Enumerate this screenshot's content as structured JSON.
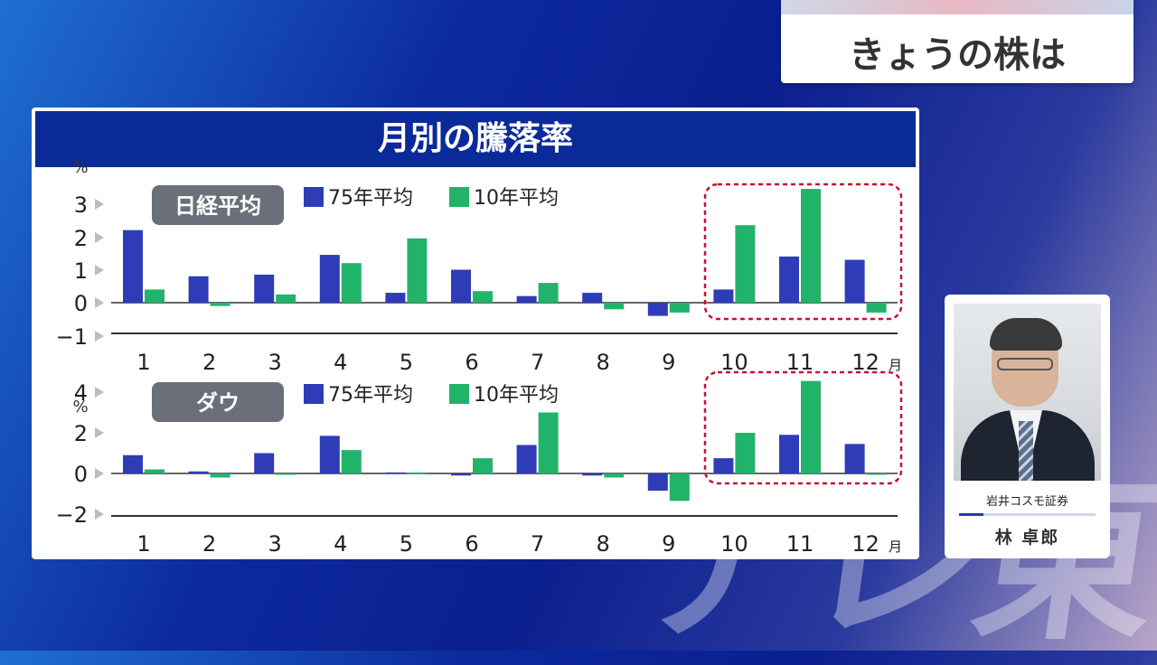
{
  "title_box": {
    "title": "きょうの株は"
  },
  "panel": {
    "title": "月別の騰落率"
  },
  "legend": {
    "series1": "75年平均",
    "series2": "10年平均"
  },
  "colors": {
    "series1": "#2e3cb8",
    "series2": "#22b36b",
    "highlight": "#c8102e",
    "header": "#0b2a9a"
  },
  "chart_data": [
    {
      "type": "bar",
      "label": "日経平均",
      "unit": "%",
      "categories": [
        "1",
        "2",
        "3",
        "4",
        "5",
        "6",
        "7",
        "8",
        "9",
        "10",
        "11",
        "12"
      ],
      "category_suffix": "月",
      "series": [
        {
          "name": "75年平均",
          "values": [
            2.2,
            0.8,
            0.85,
            1.45,
            0.3,
            1.0,
            0.2,
            0.3,
            -0.4,
            0.4,
            1.4,
            1.3
          ]
        },
        {
          "name": "10年平均",
          "values": [
            0.4,
            -0.1,
            0.25,
            1.2,
            1.95,
            0.35,
            0.6,
            -0.2,
            -0.3,
            2.35,
            3.45,
            -0.3
          ]
        }
      ],
      "yticks": [
        "3",
        "2",
        "1",
        "0",
        "−1"
      ],
      "ylim": [
        -1,
        3
      ],
      "highlight_months": [
        "10",
        "11",
        "12"
      ]
    },
    {
      "type": "bar",
      "label": "ダウ",
      "unit": "%",
      "categories": [
        "1",
        "2",
        "3",
        "4",
        "5",
        "6",
        "7",
        "8",
        "9",
        "10",
        "11",
        "12"
      ],
      "category_suffix": "月",
      "series": [
        {
          "name": "75年平均",
          "values": [
            0.9,
            0.1,
            1.0,
            1.85,
            0.05,
            -0.1,
            1.4,
            -0.1,
            -0.85,
            0.75,
            1.9,
            1.45
          ]
        },
        {
          "name": "10年平均",
          "values": [
            0.2,
            -0.2,
            0.0,
            1.15,
            0.05,
            0.75,
            3.0,
            -0.2,
            -1.35,
            2.0,
            4.55,
            0.0
          ]
        }
      ],
      "yticks": [
        "4",
        "2",
        "0",
        "−2"
      ],
      "ylim": [
        -2,
        4
      ],
      "highlight_months": [
        "10",
        "11",
        "12"
      ]
    }
  ],
  "presenter": {
    "affiliation": "岩井コスモ証券",
    "name": "林 卓郎"
  },
  "watermark": "テレ東"
}
